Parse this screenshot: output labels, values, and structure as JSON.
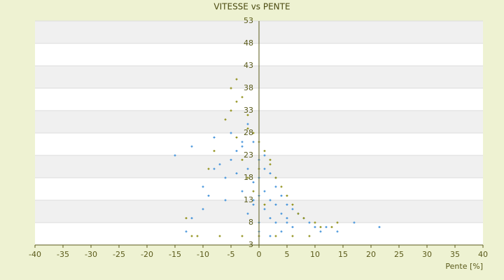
{
  "chart_data": {
    "type": "scatter",
    "title": "VITESSE vs PENTE",
    "x_label": "Pente [%]",
    "xlim": [
      -40,
      40
    ],
    "xticks": [
      -40,
      -35,
      -30,
      -25,
      -20,
      -15,
      -10,
      -5,
      0,
      5,
      10,
      15,
      20,
      25,
      30,
      35,
      40
    ],
    "ylim": [
      3,
      53
    ],
    "yticks": [
      3,
      8,
      13,
      18,
      23,
      28,
      33,
      38,
      43,
      48,
      53
    ],
    "grid": true,
    "series": [
      {
        "color": "#3d8fd9",
        "x": [
          -15,
          -13,
          -12,
          -10,
          -9,
          -8,
          -7,
          -6,
          -5,
          -5,
          -4,
          -4,
          -3,
          -3,
          -2,
          -2,
          -1,
          -1,
          -1,
          0,
          0,
          0,
          0,
          1,
          1,
          1,
          2,
          2,
          2,
          3,
          3,
          3,
          4,
          4,
          5,
          5,
          6,
          6,
          7,
          8,
          9,
          10,
          11,
          12,
          14,
          17,
          21.5,
          -12,
          -10,
          -6,
          -3,
          0,
          2,
          4,
          -2,
          1,
          3,
          5,
          -8,
          -1
        ],
        "values": [
          23,
          6,
          9,
          16,
          14,
          20,
          21,
          18,
          28,
          22,
          24,
          19,
          25,
          15,
          30,
          20,
          26,
          17,
          12,
          22,
          18,
          14,
          8,
          20,
          15,
          11,
          19,
          13,
          9,
          16,
          12,
          8,
          14,
          10,
          12,
          8,
          11,
          7,
          10,
          9,
          8,
          7,
          6,
          7,
          6,
          8,
          7,
          25,
          11,
          13,
          26,
          6,
          5,
          6,
          10,
          23,
          18,
          9,
          27,
          13
        ]
      },
      {
        "color": "#8c8c10",
        "x": [
          -13,
          -11,
          -9,
          -8,
          -6,
          -5,
          -5,
          -4,
          -4,
          -3,
          -3,
          -2,
          -2,
          -1,
          -1,
          0,
          0,
          1,
          1,
          2,
          3,
          4,
          5,
          6,
          8,
          10,
          11,
          13,
          14,
          -12,
          -7,
          -3,
          0,
          3,
          6,
          9,
          -4,
          -2,
          2,
          7
        ],
        "values": [
          9,
          5,
          20,
          24,
          31,
          38,
          33,
          40,
          27,
          36,
          22,
          32,
          18,
          28,
          15,
          26,
          20,
          24,
          12,
          22,
          18,
          16,
          14,
          12,
          9,
          8,
          7,
          7,
          8,
          5,
          5,
          5,
          5,
          5,
          5,
          5,
          35,
          29,
          21,
          10
        ]
      }
    ]
  }
}
